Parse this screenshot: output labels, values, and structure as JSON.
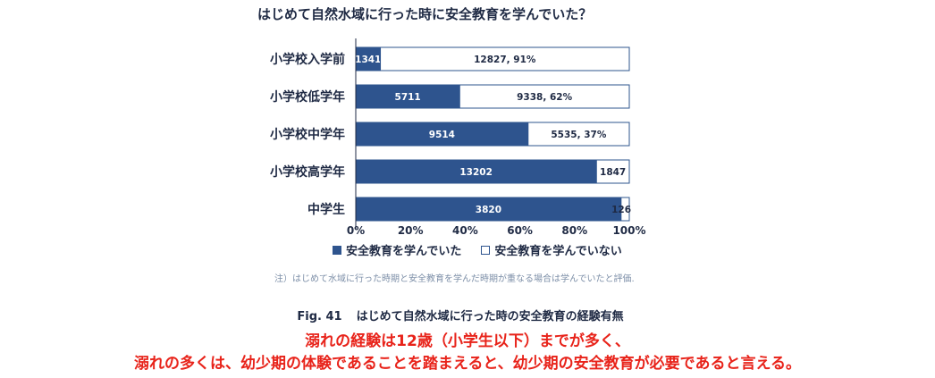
{
  "chart_data": {
    "type": "bar",
    "orientation": "horizontal",
    "stacked": "percent",
    "title": "はじめて自然水域に行った時に安全教育を学んでいた？",
    "categories": [
      "小学校入学前",
      "小学校低学年",
      "小学校中学年",
      "小学校高学年",
      "中学生"
    ],
    "series": [
      {
        "name": "安全教育を学んでいた",
        "values": [
          1341,
          5711,
          9514,
          13202,
          3820
        ],
        "percent": [
          9,
          38,
          63,
          88,
          97
        ],
        "labels": [
          "1341",
          "5711",
          "9514",
          "13202",
          "3820"
        ],
        "color": "#2e548e"
      },
      {
        "name": "安全教育を学んでいない",
        "values": [
          12827,
          9338,
          5535,
          1847,
          126
        ],
        "percent": [
          91,
          62,
          37,
          12,
          3
        ],
        "labels": [
          "12827, 91%",
          "9338, 62%",
          "5535, 37%",
          "1847",
          "126"
        ],
        "color": "#ffffff"
      }
    ],
    "xlim": [
      0,
      100
    ],
    "xticks": [
      "0%",
      "20%",
      "40%",
      "60%",
      "80%",
      "100%"
    ],
    "grid": false,
    "legend": "bottom"
  },
  "note": "注）はじめて水域に行った時期と安全教育を学んだ時期が重なる場合は学んでいたと評価.",
  "figure": {
    "number": "Fig. 41",
    "caption": "はじめて自然水域に行った時の安全教育の経験有無"
  },
  "message": {
    "line1": "溺れの経験は12歳（小学生以下）までが多く、",
    "line2": "溺れの多くは、幼少期の体験であることを踏まえると、幼少期の安全教育が必要であると言える。"
  },
  "colors": {
    "bar_learned": "#2e548e",
    "bar_not_learned": "#ffffff",
    "text_dark": "#1f2a44",
    "message_red": "#e8231a"
  }
}
